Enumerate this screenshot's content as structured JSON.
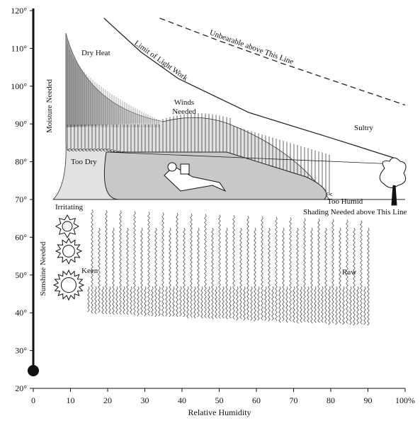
{
  "chart_data": {
    "type": "bioclimatic",
    "xlabel": "Relative Humidity",
    "xlim": [
      0,
      100
    ],
    "ylim": [
      20,
      120
    ],
    "xticks": [
      0,
      10,
      20,
      30,
      40,
      50,
      60,
      70,
      80,
      90,
      {
        "value": 100,
        "label": "100%"
      }
    ],
    "yticks": [
      {
        "value": 20,
        "label": "20°"
      },
      {
        "value": 30,
        "label": "30°"
      },
      {
        "value": 40,
        "label": "40°"
      },
      {
        "value": 50,
        "label": "50°"
      },
      {
        "value": 60,
        "label": "60°"
      },
      {
        "value": 70,
        "label": "70°"
      },
      {
        "value": 80,
        "label": "80°"
      },
      {
        "value": 90,
        "label": "90°"
      },
      {
        "value": 100,
        "label": "100°"
      },
      {
        "value": 110,
        "label": "110°"
      },
      {
        "value": 120,
        "label": "120°"
      }
    ],
    "ylabels": [
      "Moisture Needed",
      "Sunshine Needed"
    ],
    "series": [
      {
        "name": "Limit of Light Work",
        "dash": false,
        "x": [
          19,
          29,
          39,
          58,
          81,
          97
        ],
        "values": [
          118,
          109,
          102,
          93,
          86,
          81
        ]
      },
      {
        "name": "Unbearable above This Line",
        "dash": true,
        "x": [
          34,
          50,
          67,
          85,
          100
        ],
        "values": [
          118,
          112,
          106,
          100,
          95
        ]
      }
    ],
    "annotations": [
      "Dry Heat",
      "Winds Needed",
      "Sultry",
      "Too Dry",
      "Too Humid",
      "Shading Needed above This Line",
      "Irritating",
      "Keen",
      "Raw"
    ]
  }
}
